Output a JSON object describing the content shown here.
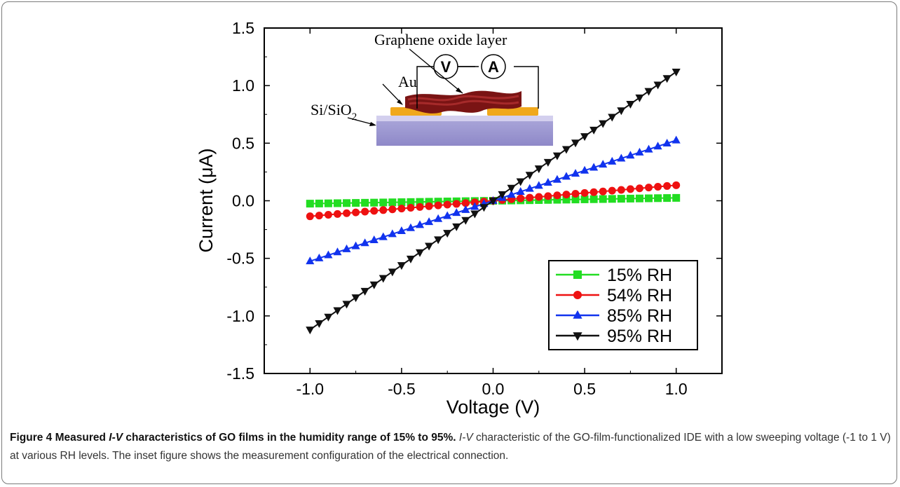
{
  "figure": {
    "caption": {
      "label": "Figure 4",
      "title_pre": " Measured ",
      "title_iv": "I-V",
      "title_post": " characteristics of GO films in the humidity range of 15% to 95%.",
      "body_iv": "I-V",
      "body_text": " characteristic of the GO-film-functionalized IDE with a low sweeping voltage (-1 to 1 V) at various RH levels. The inset figure shows the measurement configuration of the electrical connection."
    }
  },
  "inset": {
    "label_go": "Graphene oxide layer",
    "label_au": "Au",
    "label_si": "Si/SiO",
    "label_si_sub": "2",
    "meter_v": "V",
    "meter_a": "A"
  },
  "chart_data": {
    "type": "line",
    "title": "",
    "xlabel": "Voltage (V)",
    "ylabel": "Current (μA)",
    "xlim": [
      -1.25,
      1.25
    ],
    "ylim": [
      -1.5,
      1.5
    ],
    "x_ticks": [
      -1.0,
      -0.5,
      0.0,
      0.5,
      1.0
    ],
    "x_tick_labels": [
      "-1.0",
      "-0.5",
      "0.0",
      "0.5",
      "1.0"
    ],
    "y_ticks": [
      -1.5,
      -1.0,
      -0.5,
      0.0,
      0.5,
      1.0,
      1.5
    ],
    "y_tick_labels": [
      "-1.5",
      "-1.0",
      "-0.5",
      "0.0",
      "0.5",
      "1.0",
      "1.5"
    ],
    "x": [
      -1.0,
      -0.95,
      -0.9,
      -0.85,
      -0.8,
      -0.75,
      -0.7,
      -0.65,
      -0.6,
      -0.55,
      -0.5,
      -0.45,
      -0.4,
      -0.35,
      -0.3,
      -0.25,
      -0.2,
      -0.15,
      -0.1,
      -0.05,
      0.0,
      0.05,
      0.1,
      0.15,
      0.2,
      0.25,
      0.3,
      0.35,
      0.4,
      0.45,
      0.5,
      0.55,
      0.6,
      0.65,
      0.7,
      0.75,
      0.8,
      0.85,
      0.9,
      0.95,
      1.0
    ],
    "series": [
      {
        "name": "15% RH",
        "color": "#22dd22",
        "marker": "square",
        "slope": 0.025
      },
      {
        "name": "54% RH",
        "color": "#ee1111",
        "marker": "circle",
        "slope": 0.135
      },
      {
        "name": "85% RH",
        "color": "#1133ee",
        "marker": "triangle-up",
        "slope": 0.525
      },
      {
        "name": "95% RH",
        "color": "#111111",
        "marker": "triangle-down",
        "slope": 1.12
      }
    ],
    "legend_position": "bottom-right",
    "grid": false
  }
}
